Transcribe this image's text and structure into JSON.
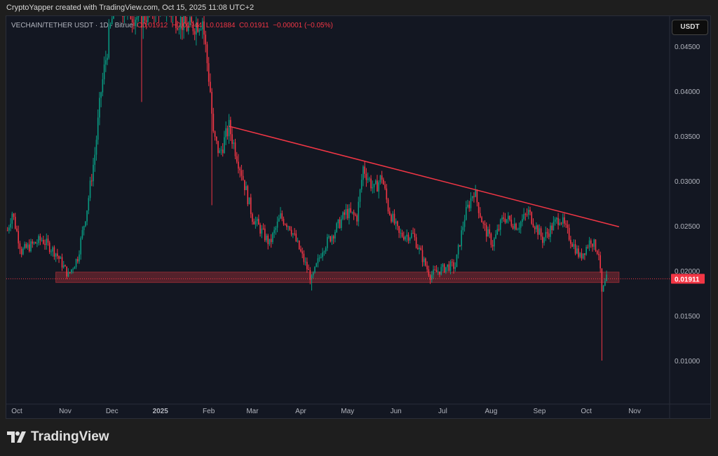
{
  "credit": "CryptoYapper created with TradingView.com, Oct 15, 2025 11:08 UTC+2",
  "legend": {
    "symbol": "VECHAIN/TETHER USDT · 1D · Bitrue",
    "open": "O0.01912",
    "high": "H0.01944",
    "low": "L0.01884",
    "close": "C0.01911",
    "change": "−0.00001 (−0.05%)"
  },
  "currency_button": "USDT",
  "logo_text": "TradingView",
  "colors": {
    "up": "#089981",
    "down": "#f23645",
    "trendline": "#f23645",
    "zone": "#8b2a33",
    "bg": "#131722"
  },
  "chart_data": {
    "type": "candlestick",
    "day0": "2024-10-01",
    "ylim": [
      0.0055,
      0.0475
    ],
    "y_ticks": [
      {
        "v": 0.045,
        "label": "0.04500"
      },
      {
        "v": 0.04,
        "label": "0.04000"
      },
      {
        "v": 0.035,
        "label": "0.03500"
      },
      {
        "v": 0.03,
        "label": "0.03000"
      },
      {
        "v": 0.025,
        "label": "0.02500"
      },
      {
        "v": 0.02,
        "label": "0.02000"
      },
      {
        "v": 0.015,
        "label": "0.01500"
      },
      {
        "v": 0.01,
        "label": "0.01000"
      }
    ],
    "x_ticks": [
      {
        "day": 0,
        "label": "Oct"
      },
      {
        "day": 31,
        "label": "Nov"
      },
      {
        "day": 61,
        "label": "Dec"
      },
      {
        "day": 92,
        "label": "2025",
        "bold": true
      },
      {
        "day": 123,
        "label": "Feb"
      },
      {
        "day": 151,
        "label": "Mar"
      },
      {
        "day": 182,
        "label": "Apr"
      },
      {
        "day": 212,
        "label": "May"
      },
      {
        "day": 243,
        "label": "Jun"
      },
      {
        "day": 273,
        "label": "Jul"
      },
      {
        "day": 304,
        "label": "Aug"
      },
      {
        "day": 335,
        "label": "Sep"
      },
      {
        "day": 365,
        "label": "Oct"
      },
      {
        "day": 396,
        "label": "Nov"
      }
    ],
    "price_path": [
      [
        -6,
        0.0245
      ],
      [
        -3,
        0.0265
      ],
      [
        3,
        0.0222
      ],
      [
        16,
        0.0235
      ],
      [
        25,
        0.022
      ],
      [
        33,
        0.0195
      ],
      [
        39,
        0.0215
      ],
      [
        45,
        0.027
      ],
      [
        50,
        0.033
      ],
      [
        54,
        0.04
      ],
      [
        59,
        0.046
      ],
      [
        63,
        0.05
      ],
      [
        79,
        0.048
      ],
      [
        92,
        0.05
      ],
      [
        110,
        0.047
      ],
      [
        119,
        0.048
      ],
      [
        124,
        0.04
      ],
      [
        126,
        0.035
      ],
      [
        130,
        0.033
      ],
      [
        136,
        0.036
      ],
      [
        144,
        0.031
      ],
      [
        151,
        0.026
      ],
      [
        162,
        0.023
      ],
      [
        169,
        0.026
      ],
      [
        175,
        0.025
      ],
      [
        182,
        0.022
      ],
      [
        189,
        0.019
      ],
      [
        196,
        0.0225
      ],
      [
        204,
        0.0245
      ],
      [
        211,
        0.0265
      ],
      [
        218,
        0.026
      ],
      [
        222,
        0.0315
      ],
      [
        229,
        0.029
      ],
      [
        234,
        0.0305
      ],
      [
        238,
        0.027
      ],
      [
        245,
        0.024
      ],
      [
        254,
        0.024
      ],
      [
        261,
        0.021
      ],
      [
        265,
        0.0195
      ],
      [
        276,
        0.0205
      ],
      [
        281,
        0.0205
      ],
      [
        287,
        0.026
      ],
      [
        293,
        0.029
      ],
      [
        299,
        0.025
      ],
      [
        305,
        0.023
      ],
      [
        312,
        0.026
      ],
      [
        321,
        0.025
      ],
      [
        328,
        0.0265
      ],
      [
        337,
        0.0235
      ],
      [
        348,
        0.026
      ],
      [
        355,
        0.0235
      ],
      [
        361,
        0.0215
      ],
      [
        368,
        0.0235
      ],
      [
        373,
        0.022
      ],
      [
        375,
        0.0175
      ],
      [
        378,
        0.0191
      ]
    ],
    "special_wicks": [
      {
        "day": 80,
        "low": 0.0388
      },
      {
        "day": 125,
        "low": 0.0273
      },
      {
        "day": 189,
        "low": 0.0178
      },
      {
        "day": 375,
        "low": 0.01
      }
    ],
    "trendline": {
      "from": [
        136,
        0.0361
      ],
      "to": [
        386,
        0.0249
      ]
    },
    "support_zone": {
      "from_day": 25,
      "to_day": 386,
      "top": 0.01985,
      "bottom": 0.0187
    },
    "last_price": {
      "value": 0.01911,
      "label": "0.01911"
    }
  }
}
